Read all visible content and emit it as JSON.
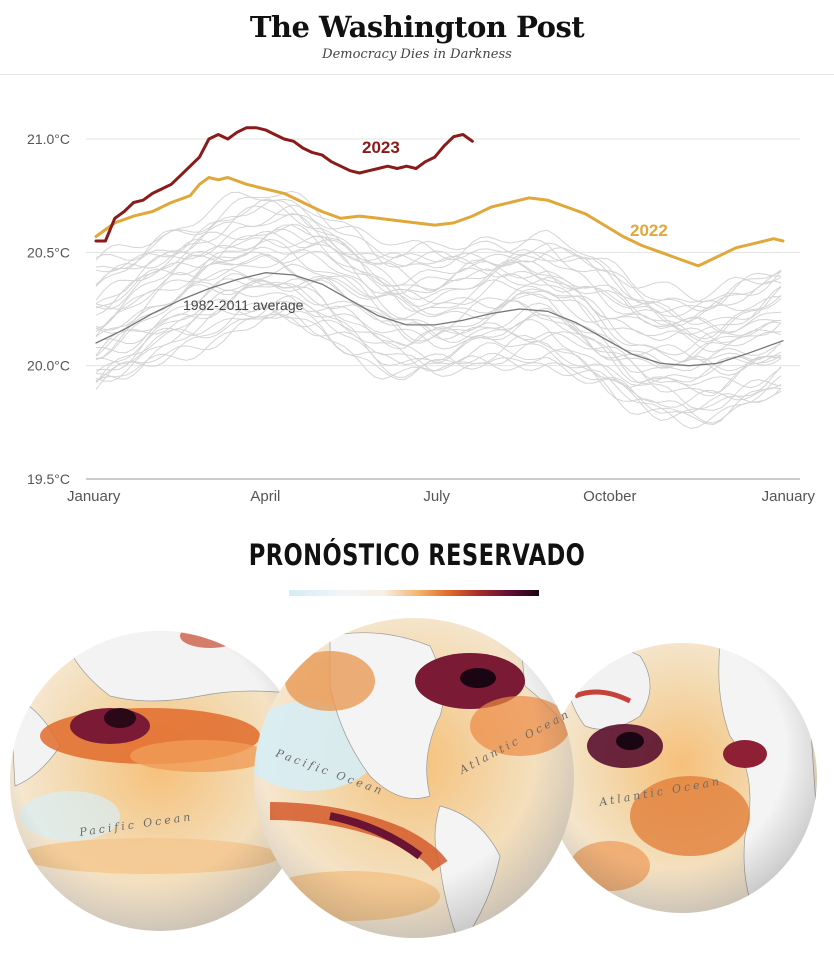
{
  "masthead": {
    "logo": "The Washington Post",
    "tagline": "Democracy Dies in Darkness"
  },
  "chart_data": {
    "type": "line",
    "xlabel": "",
    "ylabel": "",
    "ylim": [
      19.5,
      21.1
    ],
    "y_ticks": [
      "21.0°C",
      "20.5°C",
      "20.0°C",
      "19.5°C"
    ],
    "y_tick_values": [
      21.0,
      20.5,
      20.0,
      19.5
    ],
    "x_ticks": [
      "January",
      "April",
      "July",
      "October",
      "January"
    ],
    "x_tick_days": [
      0,
      90,
      181,
      273,
      365
    ],
    "grid": true,
    "colors": {
      "y2023": "#8b1a1a",
      "y2022": "#e0a83a",
      "average": "#777777",
      "history": "#d4d4d4"
    },
    "series": [
      {
        "name": "2023",
        "x": [
          0,
          5,
          10,
          15,
          20,
          25,
          30,
          35,
          40,
          45,
          50,
          55,
          60,
          65,
          70,
          75,
          80,
          85,
          90,
          95,
          100,
          105,
          110,
          115,
          120,
          125,
          130,
          135,
          140,
          145,
          150,
          155,
          160,
          165,
          170,
          175,
          180,
          185,
          190,
          195,
          200
        ],
        "y": [
          20.55,
          20.55,
          20.65,
          20.68,
          20.72,
          20.73,
          20.76,
          20.78,
          20.8,
          20.84,
          20.88,
          20.92,
          21.0,
          21.02,
          21.0,
          21.03,
          21.05,
          21.05,
          21.04,
          21.02,
          21.0,
          20.99,
          20.96,
          20.94,
          20.93,
          20.9,
          20.88,
          20.86,
          20.85,
          20.86,
          20.87,
          20.88,
          20.87,
          20.88,
          20.87,
          20.9,
          20.92,
          20.97,
          21.01,
          21.02,
          20.99
        ]
      },
      {
        "name": "2022",
        "x": [
          0,
          10,
          20,
          30,
          40,
          50,
          55,
          60,
          65,
          70,
          80,
          90,
          100,
          110,
          120,
          130,
          140,
          150,
          160,
          170,
          180,
          190,
          200,
          210,
          220,
          230,
          240,
          250,
          260,
          270,
          280,
          290,
          300,
          310,
          320,
          330,
          340,
          350,
          360,
          365
        ],
        "y": [
          20.57,
          20.63,
          20.66,
          20.68,
          20.72,
          20.75,
          20.8,
          20.83,
          20.82,
          20.83,
          20.8,
          20.78,
          20.76,
          20.72,
          20.68,
          20.65,
          20.66,
          20.65,
          20.64,
          20.63,
          20.62,
          20.63,
          20.66,
          20.7,
          20.72,
          20.74,
          20.73,
          20.7,
          20.67,
          20.62,
          20.57,
          20.53,
          20.5,
          20.47,
          20.44,
          20.48,
          20.52,
          20.54,
          20.56,
          20.55
        ]
      },
      {
        "name": "1982-2011 average",
        "x": [
          0,
          15,
          30,
          45,
          60,
          75,
          90,
          105,
          120,
          135,
          150,
          165,
          180,
          195,
          210,
          225,
          240,
          255,
          270,
          285,
          300,
          315,
          330,
          345,
          355,
          365
        ],
        "y": [
          20.1,
          20.16,
          20.23,
          20.29,
          20.34,
          20.38,
          20.41,
          20.4,
          20.36,
          20.29,
          20.22,
          20.18,
          20.18,
          20.2,
          20.23,
          20.25,
          20.24,
          20.19,
          20.12,
          20.05,
          20.01,
          20.0,
          20.01,
          20.05,
          20.08,
          20.11
        ]
      }
    ],
    "labels": {
      "y2023": "2023",
      "y2022": "2022",
      "average": "1982-2011 average"
    }
  },
  "lower": {
    "title": "PRONÓSTICO RESERVADO",
    "ocean_labels": {
      "pacific_left": "Pacific Ocean",
      "pacific_center": "Pacific Ocean",
      "atlantic_center": "Atlantic Ocean",
      "atlantic_right": "Atlantic Ocean"
    }
  }
}
